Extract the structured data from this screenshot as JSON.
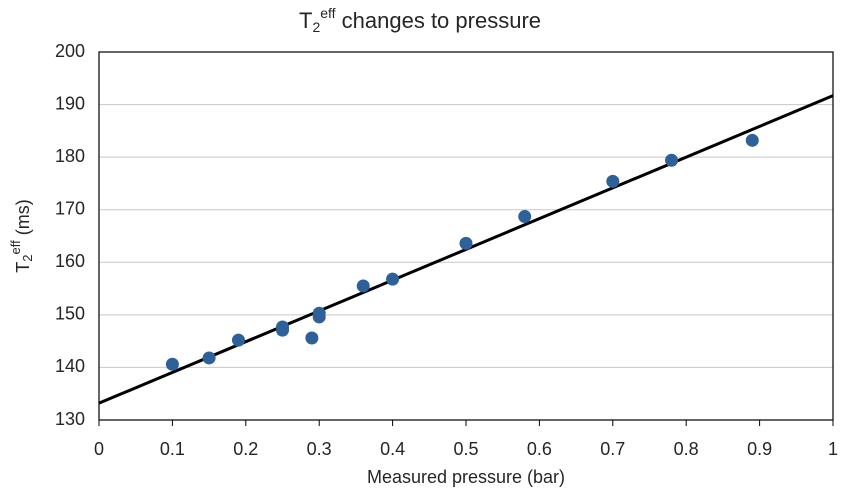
{
  "chart_data": {
    "type": "scatter",
    "title": {
      "base": "T",
      "sub": "2",
      "sup": "eff",
      "rest": " changes to pressure"
    },
    "x_label": "Measured pressure (bar)",
    "y_label": {
      "base": "T",
      "sub": "2",
      "sup": "eff",
      "rest": " (ms)"
    },
    "series": [
      {
        "name": "T2eff",
        "color": "#2e6199",
        "x": [
          0.1,
          0.15,
          0.19,
          0.25,
          0.25,
          0.29,
          0.3,
          0.3,
          0.36,
          0.4,
          0.5,
          0.58,
          0.7,
          0.78,
          0.89
        ],
        "values": [
          140.6,
          141.8,
          145.2,
          147.7,
          147.1,
          145.6,
          150.3,
          149.6,
          155.5,
          156.8,
          163.6,
          168.7,
          175.4,
          179.4,
          183.2
        ]
      }
    ],
    "trendline": {
      "color": "#000000",
      "x": [
        0,
        1
      ],
      "values": [
        133.2,
        191.7
      ]
    },
    "xlim": [
      0,
      1
    ],
    "xticks": [
      0,
      0.1,
      0.2,
      0.3,
      0.4,
      0.5,
      0.6,
      0.7,
      0.8,
      0.9,
      1
    ],
    "ylim": [
      130,
      200
    ],
    "yticks": [
      130,
      140,
      150,
      160,
      170,
      180,
      190,
      200
    ],
    "grid": true
  }
}
